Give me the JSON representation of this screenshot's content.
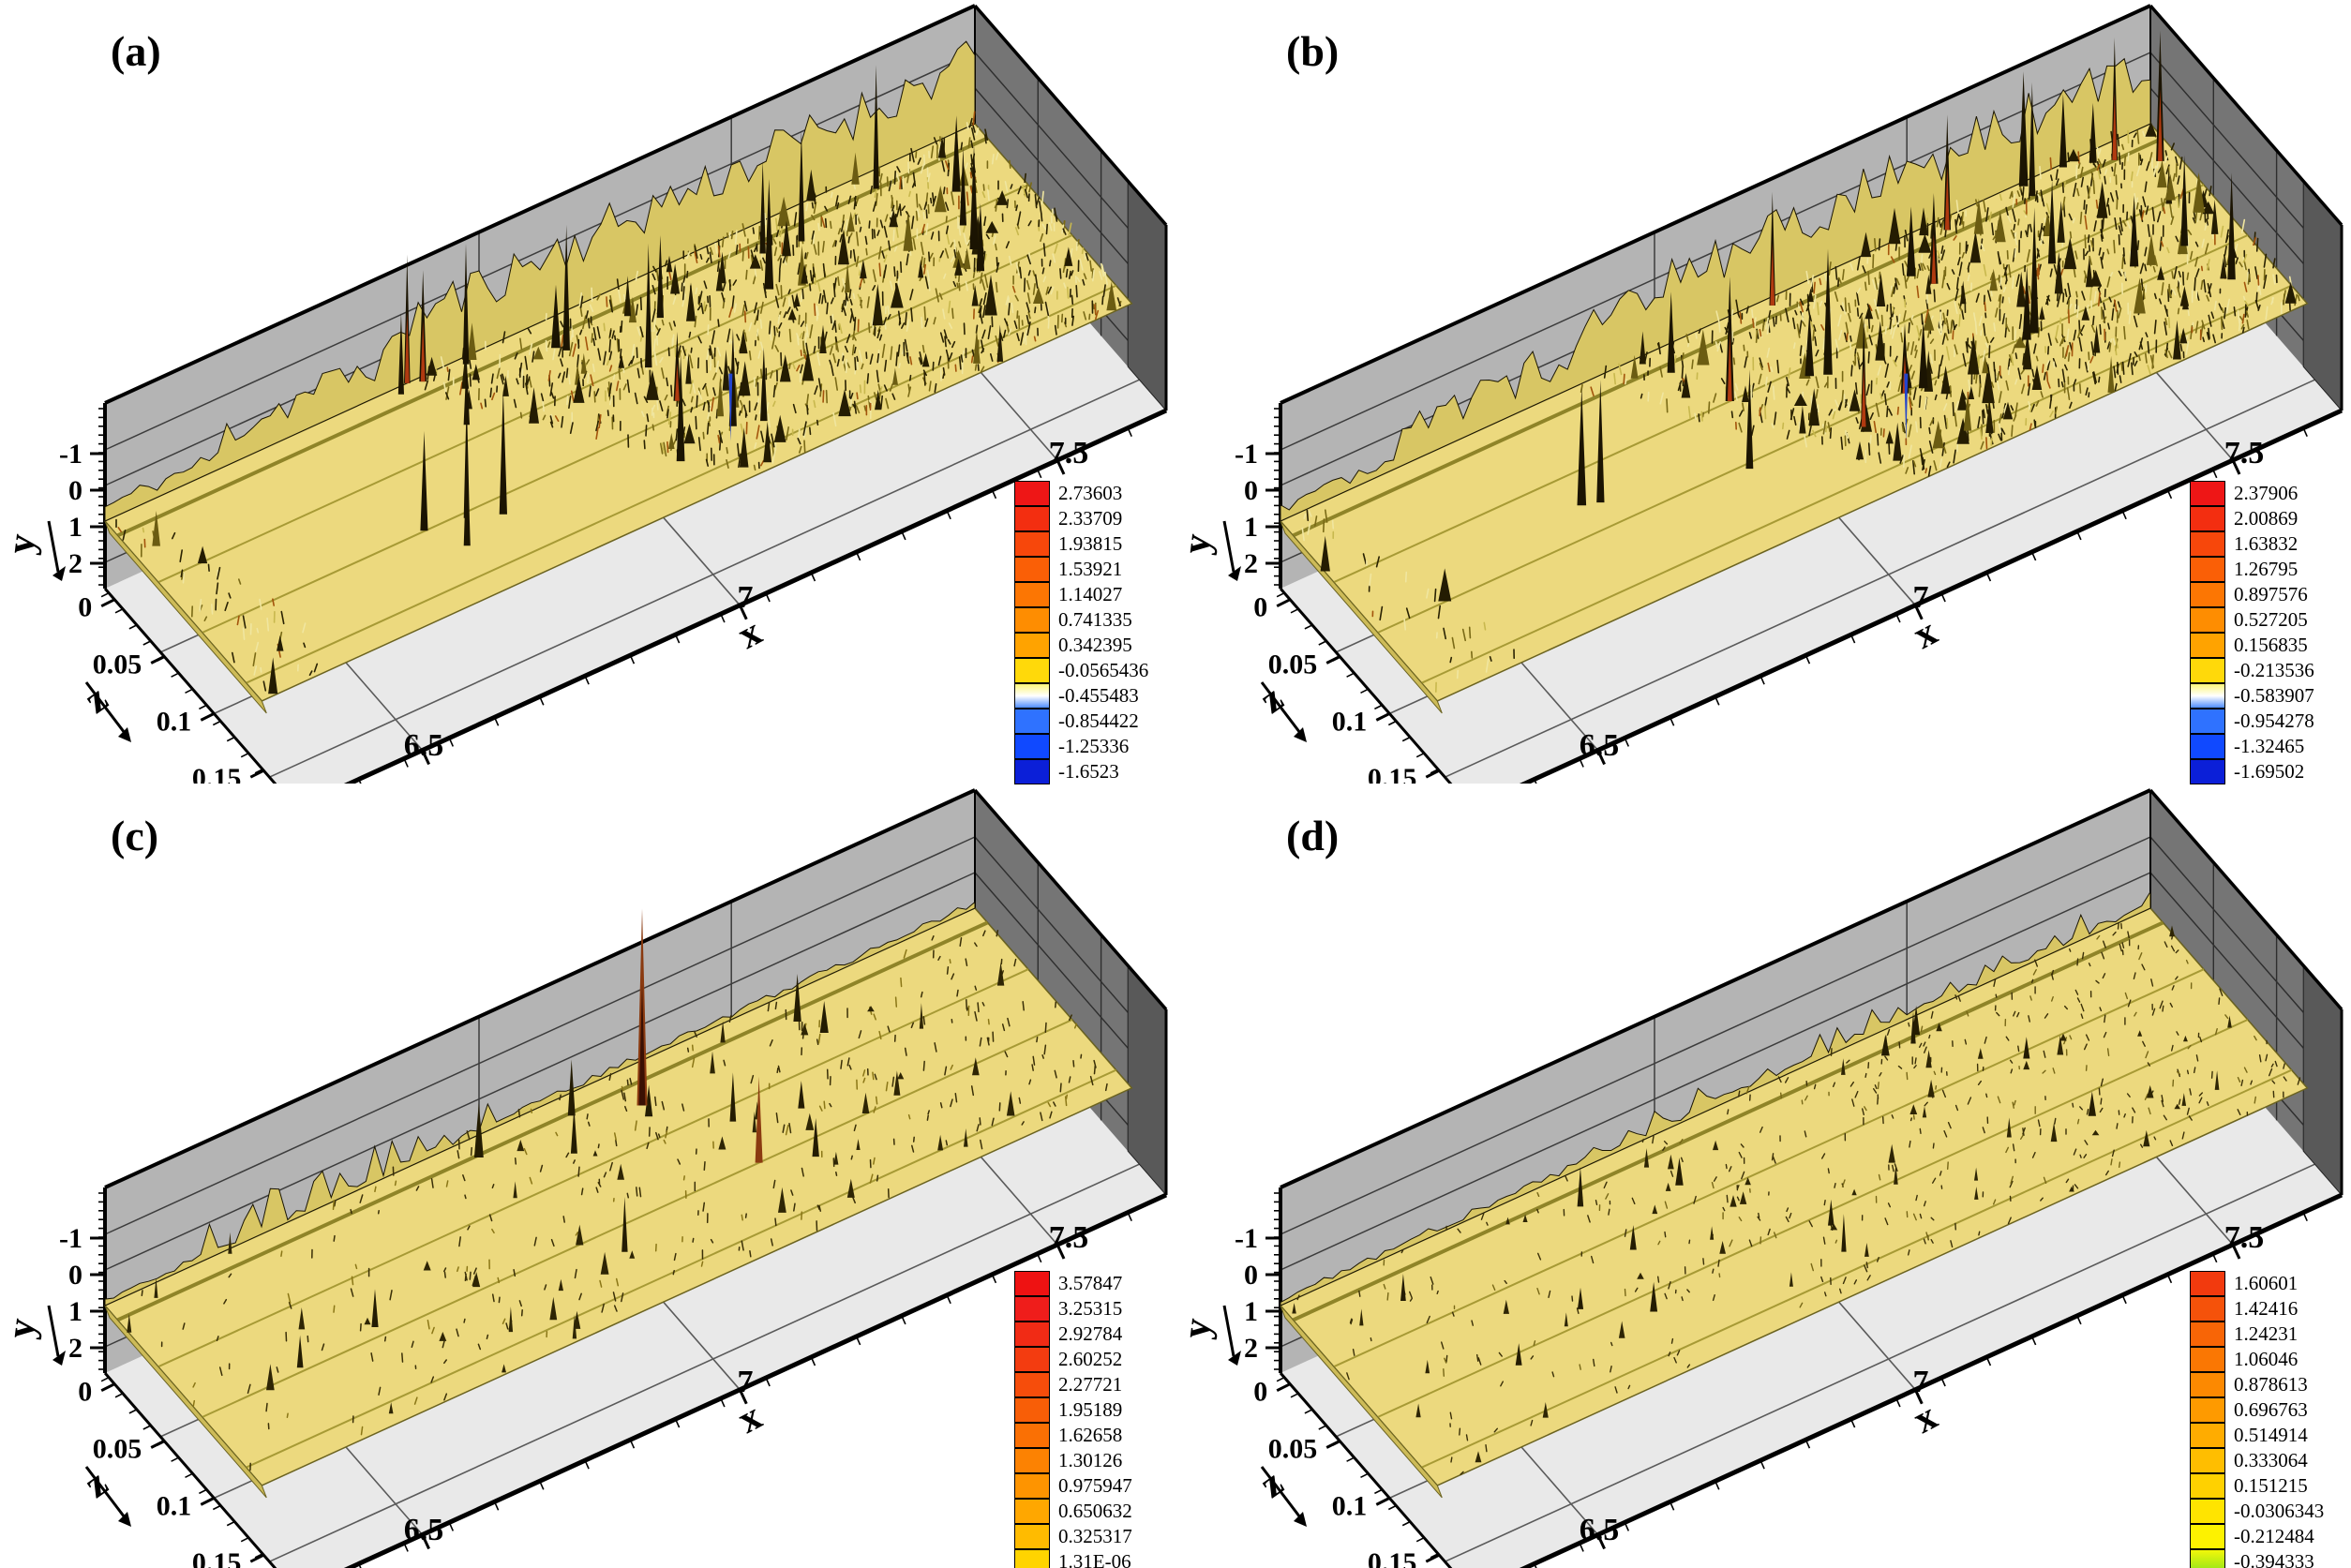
{
  "figure": {
    "background": "#ffffff",
    "colors": {
      "wall": "#b4b4b4",
      "wall_grid": "#3c3c3c",
      "right_wall": "#757575",
      "right_wall_dark": "#595959",
      "right_wall_grid": "#2e2e2e",
      "floor": "#e9e9e9",
      "floor_grid": "#5a5a5a",
      "edge": "#000000",
      "sheet": "#ecd97e",
      "sheet_line": "#8f8428",
      "terrain_base": "#d8c664",
      "spike_dark": "#241c02",
      "spike_red": "#a94e0e",
      "hang_spike_blue": "#2244cc"
    },
    "panels": [
      {
        "id": "a",
        "label": "(a)",
        "terrain": "dense",
        "seed": 11,
        "axes": {
          "x": {
            "label": "x",
            "ticks": [
              "6.5",
              "7",
              "7.5"
            ]
          },
          "y": {
            "label": "y",
            "ticks": [
              "2",
              "1",
              "0",
              "-1"
            ]
          },
          "z": {
            "label": "z",
            "ticks": [
              "0",
              "0.05",
              "0.1",
              "0.15"
            ]
          }
        },
        "legend": {
          "values": [
            "2.73603",
            "2.33709",
            "1.93815",
            "1.53921",
            "1.14027",
            "0.741335",
            "0.342395",
            "-0.0565436",
            "-0.455483",
            "-0.854422",
            "-1.25336",
            "-1.6523"
          ],
          "colors": [
            "#ee1616",
            "#f32e10",
            "#f7470b",
            "#fa5f06",
            "#fc7603",
            "#fe8d01",
            "#ffa300",
            "#ffd90a",
            "grad:#fdf77a,#ffffff,#4f8dff",
            "#2f72ff",
            "#1049ff",
            "#0b1fd8"
          ],
          "sliver": null
        }
      },
      {
        "id": "b",
        "label": "(b)",
        "terrain": "dense",
        "seed": 47,
        "axes": {
          "x": {
            "label": "x",
            "ticks": [
              "6.5",
              "7",
              "7.5"
            ]
          },
          "y": {
            "label": "y",
            "ticks": [
              "2",
              "1",
              "0",
              "-1"
            ]
          },
          "z": {
            "label": "z",
            "ticks": [
              "0",
              "0.05",
              "0.1",
              "0.15"
            ]
          }
        },
        "legend": {
          "values": [
            "2.37906",
            "2.00869",
            "1.63832",
            "1.26795",
            "0.897576",
            "0.527205",
            "0.156835",
            "-0.213536",
            "-0.583907",
            "-0.954278",
            "-1.32465",
            "-1.69502"
          ],
          "colors": [
            "#ee1616",
            "#f32e10",
            "#f7470b",
            "#fa5f06",
            "#fc7603",
            "#fe8d01",
            "#ffa300",
            "#ffd90a",
            "grad:#fdf77a,#ffffff,#4f8dff",
            "#2f72ff",
            "#1049ff",
            "#0b1fd8"
          ],
          "sliver": null
        }
      },
      {
        "id": "c",
        "label": "(c)",
        "terrain": "sparse",
        "seed": 83,
        "axes": {
          "x": {
            "label": "x",
            "ticks": [
              "6.5",
              "7",
              "7.5"
            ]
          },
          "y": {
            "label": "y",
            "ticks": [
              "2",
              "1",
              "0",
              "-1"
            ]
          },
          "z": {
            "label": "z",
            "ticks": [
              "0",
              "0.05",
              "0.1",
              "0.15"
            ]
          }
        },
        "legend": {
          "values": [
            "3.57847",
            "3.25315",
            "2.92784",
            "2.60252",
            "2.27721",
            "1.95189",
            "1.62658",
            "1.30126",
            "0.975947",
            "0.650632",
            "0.325317",
            "1.31E-06"
          ],
          "colors": [
            "#ee1212",
            "#ef1d1b",
            "#f12b15",
            "#f33c10",
            "#f64d0b",
            "#f85e07",
            "#fa7004",
            "#fc8202",
            "#fe9400",
            "#ffa700",
            "#ffbb00",
            "#ffd400"
          ],
          "sliver": "#1d43f0"
        }
      },
      {
        "id": "d",
        "label": "(d)",
        "terrain": "speckle",
        "seed": 129,
        "axes": {
          "x": {
            "label": "x",
            "ticks": [
              "6.5",
              "7",
              "7.5"
            ]
          },
          "y": {
            "label": "y",
            "ticks": [
              "2",
              "1",
              "0",
              "-1"
            ]
          },
          "z": {
            "label": "z",
            "ticks": [
              "0",
              "0.05",
              "0.1",
              "0.15"
            ]
          }
        },
        "legend": {
          "values": [
            "1.60601",
            "1.42416",
            "1.24231",
            "1.06046",
            "0.878613",
            "0.696763",
            "0.514914",
            "0.333064",
            "0.151215",
            "-0.0306343",
            "-0.212484",
            "-0.394333"
          ],
          "colors": [
            "#f23a0e",
            "#f5520a",
            "#f86506",
            "#fa7703",
            "#fc8901",
            "#fe9a00",
            "#ffac00",
            "#ffbe00",
            "#ffd100",
            "#ffe400",
            "#fdf200",
            "grad:#f2f70a,#8ce41c"
          ],
          "sliver": "grad:#3ed83e,#00cfd0,#0f6bff"
        }
      }
    ]
  },
  "chart_data": [
    {
      "type": "surface",
      "panel": "a",
      "plot_style": "3D isosurface over channel wall, Tecplot-style box",
      "contour_levels": [
        2.73603,
        2.33709,
        1.93815,
        1.53921,
        1.14027,
        0.741335,
        0.342395,
        -0.0565436,
        -0.455483,
        -0.854422,
        -1.25336,
        -1.6523
      ],
      "x_ticks": [
        6.5,
        7,
        7.5
      ],
      "y_ticks": [
        2,
        1,
        0,
        -1
      ],
      "z_ticks": [
        0,
        0.05,
        0.1,
        0.15
      ],
      "x_range": [
        6.2,
        7.7
      ],
      "y_range": [
        -1,
        2.5
      ],
      "z_range": [
        0,
        0.175
      ],
      "surface_character": "flat smooth sheet upstream-left, dense rough turbulent spikes over rear and right two-thirds, one thin blue spike hanging below sheet"
    },
    {
      "type": "surface",
      "panel": "b",
      "plot_style": "3D isosurface over channel wall, Tecplot-style box",
      "contour_levels": [
        2.37906,
        2.00869,
        1.63832,
        1.26795,
        0.897576,
        0.527205,
        0.156835,
        -0.213536,
        -0.583907,
        -0.954278,
        -1.32465,
        -1.69502
      ],
      "x_ticks": [
        6.5,
        7,
        7.5
      ],
      "y_ticks": [
        2,
        1,
        0,
        -1
      ],
      "z_ticks": [
        0,
        0.05,
        0.1,
        0.15
      ],
      "x_range": [
        6.2,
        7.7
      ],
      "y_range": [
        -1,
        2.5
      ],
      "z_range": [
        0,
        0.175
      ],
      "surface_character": "flat smooth sheet upstream-left, dense rough turbulent spikes over rear and right two-thirds, one thin blue spike hanging below sheet"
    },
    {
      "type": "surface",
      "panel": "c",
      "plot_style": "3D isosurface over channel wall, Tecplot-style box",
      "contour_levels": [
        3.57847,
        3.25315,
        2.92784,
        2.60252,
        2.27721,
        1.95189,
        1.62658,
        1.30126,
        0.975947,
        0.650632,
        0.325317,
        1.31e-06
      ],
      "x_ticks": [
        6.5,
        7,
        7.5
      ],
      "y_ticks": [
        2,
        1,
        0,
        -1
      ],
      "z_ticks": [
        0,
        0.05,
        0.1,
        0.15
      ],
      "x_range": [
        6.2,
        7.7
      ],
      "y_range": [
        -1,
        2.5
      ],
      "z_range": [
        0,
        0.175
      ],
      "surface_character": "mostly flat yellow sheet with scattered small spikes, one very tall red-tipped spike near centre-back around x=7"
    },
    {
      "type": "surface",
      "panel": "d",
      "plot_style": "3D isosurface over channel wall, Tecplot-style box",
      "contour_levels": [
        1.60601,
        1.42416,
        1.24231,
        1.06046,
        0.878613,
        0.696763,
        0.514914,
        0.333064,
        0.151215,
        -0.0306343,
        -0.212484,
        -0.394333
      ],
      "x_ticks": [
        6.5,
        7,
        7.5
      ],
      "y_ticks": [
        2,
        1,
        0,
        -1
      ],
      "z_ticks": [
        0,
        0.05,
        0.1,
        0.15
      ],
      "x_range": [
        6.2,
        7.7
      ],
      "y_range": [
        -1,
        2.5
      ],
      "z_range": [
        0,
        0.175
      ],
      "surface_character": "flat yellow sheet densely speckled with tiny dark flecks, denser toward downstream right, only very small spikes"
    }
  ]
}
